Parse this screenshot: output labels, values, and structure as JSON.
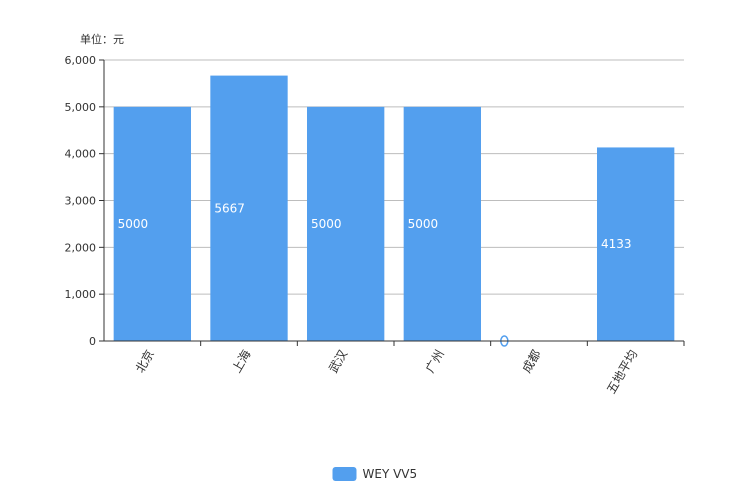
{
  "chart_data": {
    "type": "bar",
    "unit_label": "单位：元",
    "categories": [
      "北京",
      "上海",
      "武汉",
      "广州",
      "成都",
      "五地平均"
    ],
    "y_ticks": [
      "0",
      "1,000",
      "2,000",
      "3,000",
      "4,000",
      "5,000",
      "6,000"
    ],
    "ylim": [
      0,
      6000
    ],
    "series": [
      {
        "name": "WEY VV5",
        "values": [
          5000,
          5667,
          5000,
          5000,
          0,
          4133
        ],
        "labels": [
          "5000",
          "5667",
          "5000",
          "5000",
          "0",
          "4133"
        ],
        "color": "#539fee"
      }
    ],
    "legend_position": "bottom-center",
    "grid": true
  }
}
